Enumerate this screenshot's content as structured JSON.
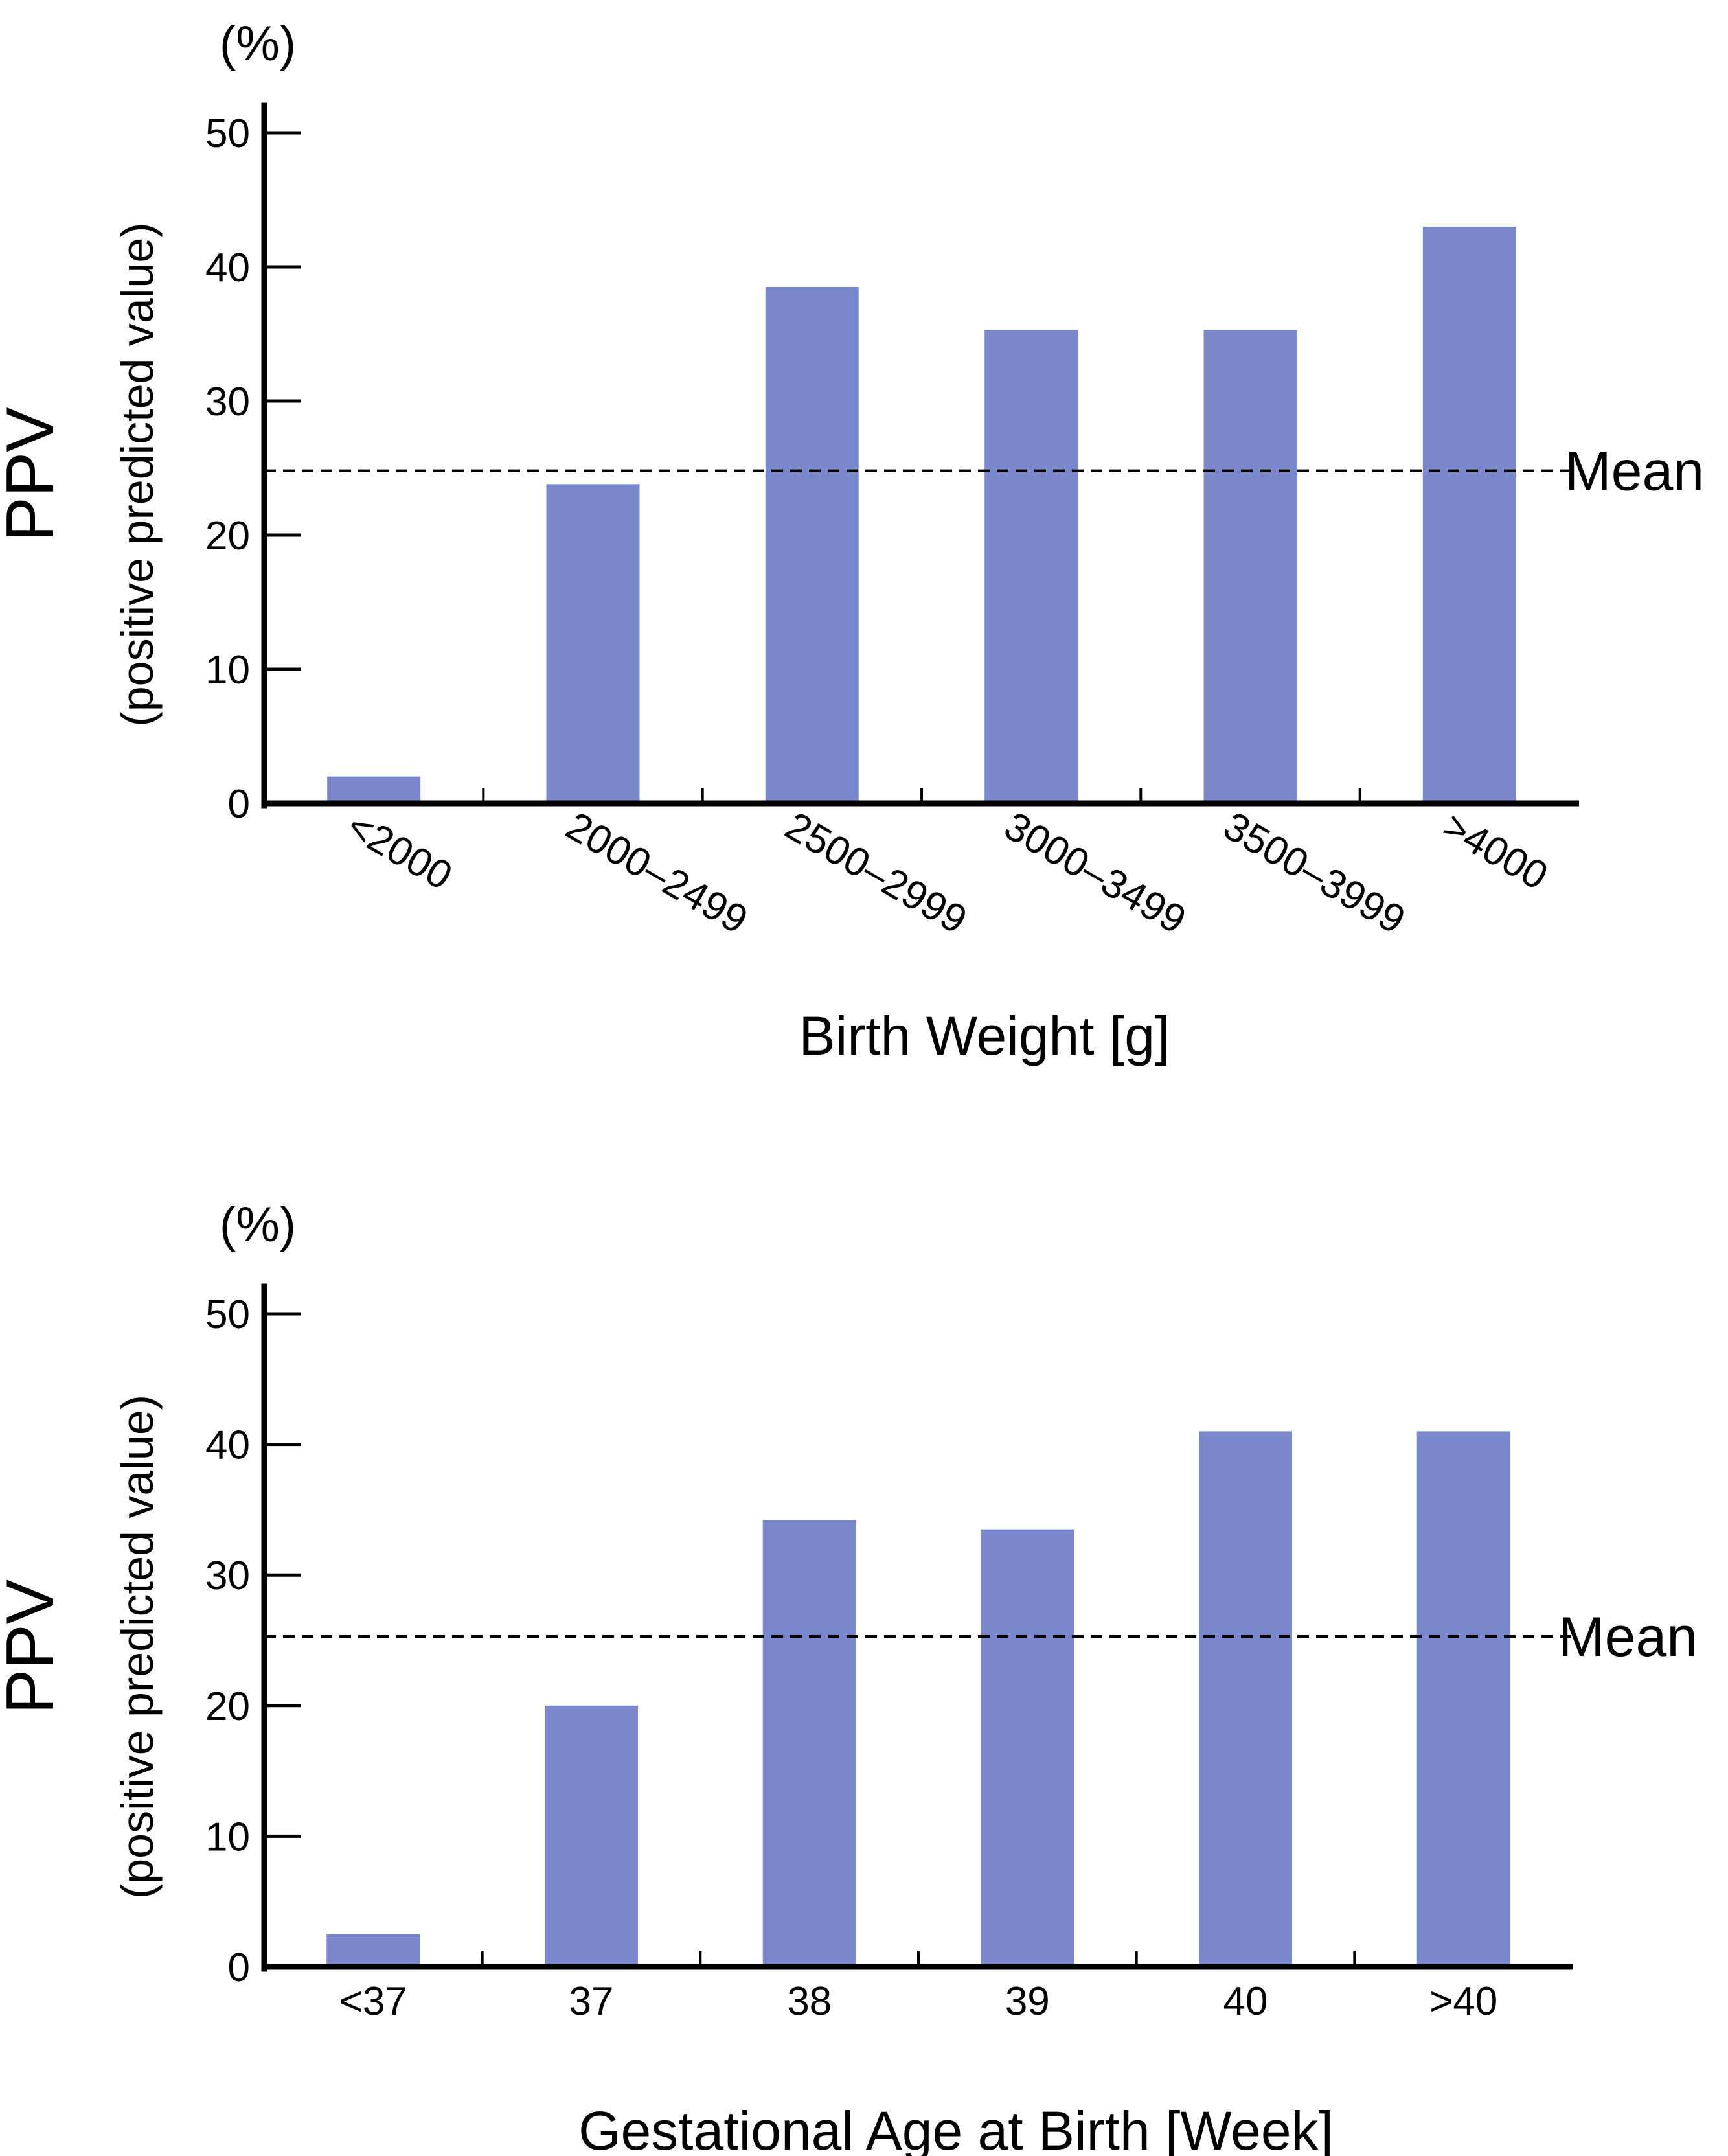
{
  "chart_data": [
    {
      "type": "bar",
      "title": "",
      "unit_label": "(%)",
      "ylabel": "PPV",
      "ylabel_sub": "(positive predicted value)",
      "xlabel": "Birth Weight [g]",
      "categories": [
        "<2000",
        "2000–2499",
        "2500–2999",
        "3000–3499",
        "3500–3999",
        ">4000"
      ],
      "values": [
        2,
        23.8,
        38.5,
        35.3,
        35.3,
        43
      ],
      "ylim": [
        0,
        50
      ],
      "yticks": [
        "0",
        "10",
        "20",
        "30",
        "40",
        "50"
      ],
      "tick_label_rotation_deg": 30,
      "mean": {
        "label": "Mean",
        "value": 24.8
      },
      "bar_color": "#7a88cb"
    },
    {
      "type": "bar",
      "title": "",
      "unit_label": "(%)",
      "ylabel": "PPV",
      "ylabel_sub": "(positive predicted value)",
      "xlabel": "Gestational Age at Birth [Week]",
      "categories": [
        "<37",
        "37",
        "38",
        "39",
        "40",
        ">40"
      ],
      "values": [
        2.5,
        20,
        34.2,
        33.5,
        41,
        41
      ],
      "ylim": [
        0,
        50
      ],
      "yticks": [
        "0",
        "10",
        "20",
        "30",
        "40",
        "50"
      ],
      "tick_label_rotation_deg": 0,
      "mean": {
        "label": "Mean",
        "value": 25.3
      },
      "bar_color": "#7a88cb"
    }
  ]
}
